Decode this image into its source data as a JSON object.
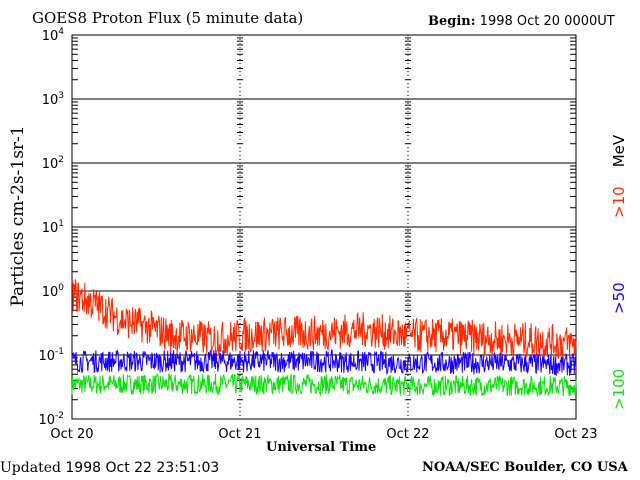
{
  "header": {
    "title": "GOES8 Proton Flux (5 minute data)",
    "begin_label": "Begin:",
    "begin_value": " 1998 Oct 20 0000UT"
  },
  "footer": {
    "updated_label": "Updated",
    "updated_value": " 1998 Oct 22 23:51:03",
    "credit": "NOAA/SEC Boulder, CO USA"
  },
  "colors": {
    "gt10": "#ff2a00",
    "gt50": "#1a00ff",
    "gt100": "#10e010",
    "grid": "#000000"
  },
  "chart_data": {
    "type": "line",
    "title": "GOES8 Proton Flux (5 minute data)",
    "xlabel": "Universal Time",
    "ylabel": "Particles cm-2s-1sr-1",
    "yscale": "log",
    "ylim": [
      0.01,
      10000
    ],
    "y_ticks": [
      {
        "value": 0.01,
        "base": "10",
        "exp": "-2"
      },
      {
        "value": 0.1,
        "base": "10",
        "exp": "-1"
      },
      {
        "value": 1,
        "base": "10",
        "exp": "0"
      },
      {
        "value": 10,
        "base": "10",
        "exp": "1"
      },
      {
        "value": 100,
        "base": "10",
        "exp": "2"
      },
      {
        "value": 1000,
        "base": "10",
        "exp": "3"
      },
      {
        "value": 10000,
        "base": "10",
        "exp": "4"
      }
    ],
    "x_ticks": [
      "Oct 20",
      "Oct 21",
      "Oct 22",
      "Oct 23"
    ],
    "xlim_days": [
      0,
      3
    ],
    "legend_placement": "right",
    "grid": true,
    "series": [
      {
        "name": ">10 MeV",
        "label_main": ">10",
        "label_unit": "MeV",
        "color_key": "gt10",
        "x_days": [
          0.0,
          0.1,
          0.2,
          0.3,
          0.4,
          0.5,
          0.6,
          0.7,
          0.8,
          0.9,
          1.0,
          1.25,
          1.5,
          1.75,
          2.0,
          2.25,
          2.5,
          2.75,
          3.0
        ],
        "y": [
          0.9,
          0.7,
          0.5,
          0.35,
          0.3,
          0.25,
          0.2,
          0.2,
          0.18,
          0.18,
          0.2,
          0.22,
          0.22,
          0.25,
          0.2,
          0.2,
          0.18,
          0.17,
          0.15
        ]
      },
      {
        "name": ">50",
        "label_main": ">50",
        "color_key": "gt50",
        "x_days": [
          0.0,
          0.5,
          1.0,
          1.5,
          2.0,
          2.5,
          3.0
        ],
        "y": [
          0.08,
          0.08,
          0.08,
          0.08,
          0.075,
          0.075,
          0.07
        ]
      },
      {
        "name": ">100",
        "label_main": ">100",
        "color_key": "gt100",
        "x_days": [
          0.0,
          0.5,
          1.0,
          1.5,
          2.0,
          2.5,
          3.0
        ],
        "y": [
          0.035,
          0.035,
          0.035,
          0.035,
          0.033,
          0.033,
          0.033
        ]
      }
    ]
  }
}
